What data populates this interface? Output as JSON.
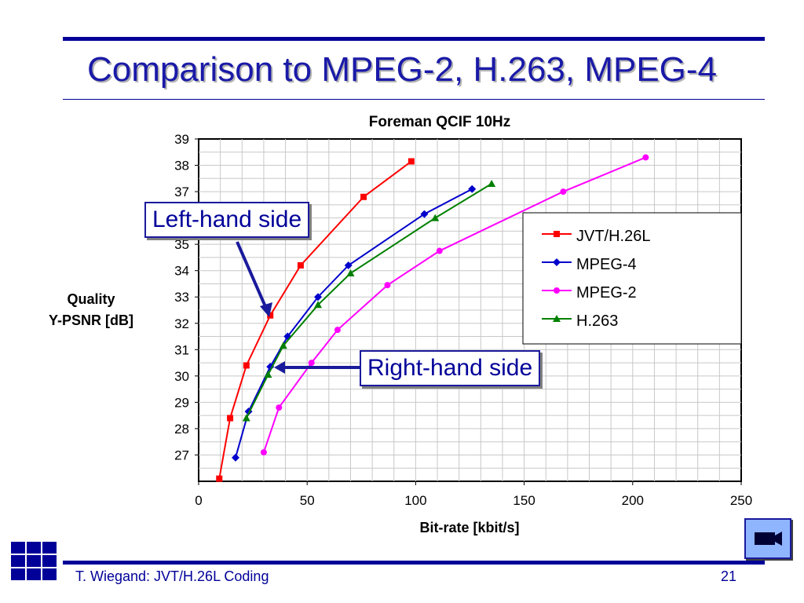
{
  "slide": {
    "title": "Comparison to MPEG-2, H.263, MPEG-4",
    "footer_text": "T. Wiegand: JVT/H.26L Coding",
    "page_number": "21",
    "video_button_icon": "video-camera-icon",
    "logo_icon": "grid-logo-icon"
  },
  "callouts": {
    "left": "Left-hand side",
    "right": "Right-hand side"
  },
  "colors": {
    "title": "#1a1aa8",
    "rule": "#000099",
    "jvt": "#ff0000",
    "mpeg4": "#0000cc",
    "mpeg2": "#ff00ff",
    "h263": "#008000"
  },
  "chart_data": {
    "type": "line",
    "title": "Foreman QCIF 10Hz",
    "xlabel": "Bit-rate [kbit/s]",
    "ylabel_lines": [
      "Quality",
      "Y-PSNR [dB]"
    ],
    "xlim": [
      0,
      250
    ],
    "ylim": [
      26,
      39
    ],
    "xticks": [
      0,
      50,
      100,
      150,
      200,
      250
    ],
    "yticks": [
      27,
      28,
      29,
      30,
      31,
      32,
      33,
      34,
      35,
      36,
      37,
      38,
      39
    ],
    "grid": true,
    "legend_position": "right",
    "series": [
      {
        "name": "JVT/H.26L",
        "color": "#ff0000",
        "marker": "square",
        "x": [
          9.5,
          14.5,
          22,
          33,
          47,
          76,
          98
        ],
        "y": [
          26.1,
          28.4,
          30.4,
          32.3,
          34.2,
          36.8,
          38.15
        ]
      },
      {
        "name": "MPEG-4",
        "color": "#0000cc",
        "marker": "diamond",
        "x": [
          17,
          23,
          33,
          41,
          55,
          69,
          104,
          126
        ],
        "y": [
          26.9,
          28.65,
          30.35,
          31.5,
          33.0,
          34.2,
          36.15,
          37.1
        ]
      },
      {
        "name": "MPEG-2",
        "color": "#ff00ff",
        "marker": "circle",
        "x": [
          30,
          37,
          52,
          64,
          87,
          111,
          168,
          206
        ],
        "y": [
          27.1,
          28.8,
          30.5,
          31.75,
          33.45,
          34.75,
          37.0,
          38.3
        ]
      },
      {
        "name": "H.263",
        "color": "#008000",
        "marker": "triangle",
        "x": [
          22,
          32,
          39,
          55,
          70,
          109,
          135
        ],
        "y": [
          28.4,
          30.05,
          31.15,
          32.7,
          33.9,
          36.0,
          37.3
        ]
      }
    ]
  }
}
